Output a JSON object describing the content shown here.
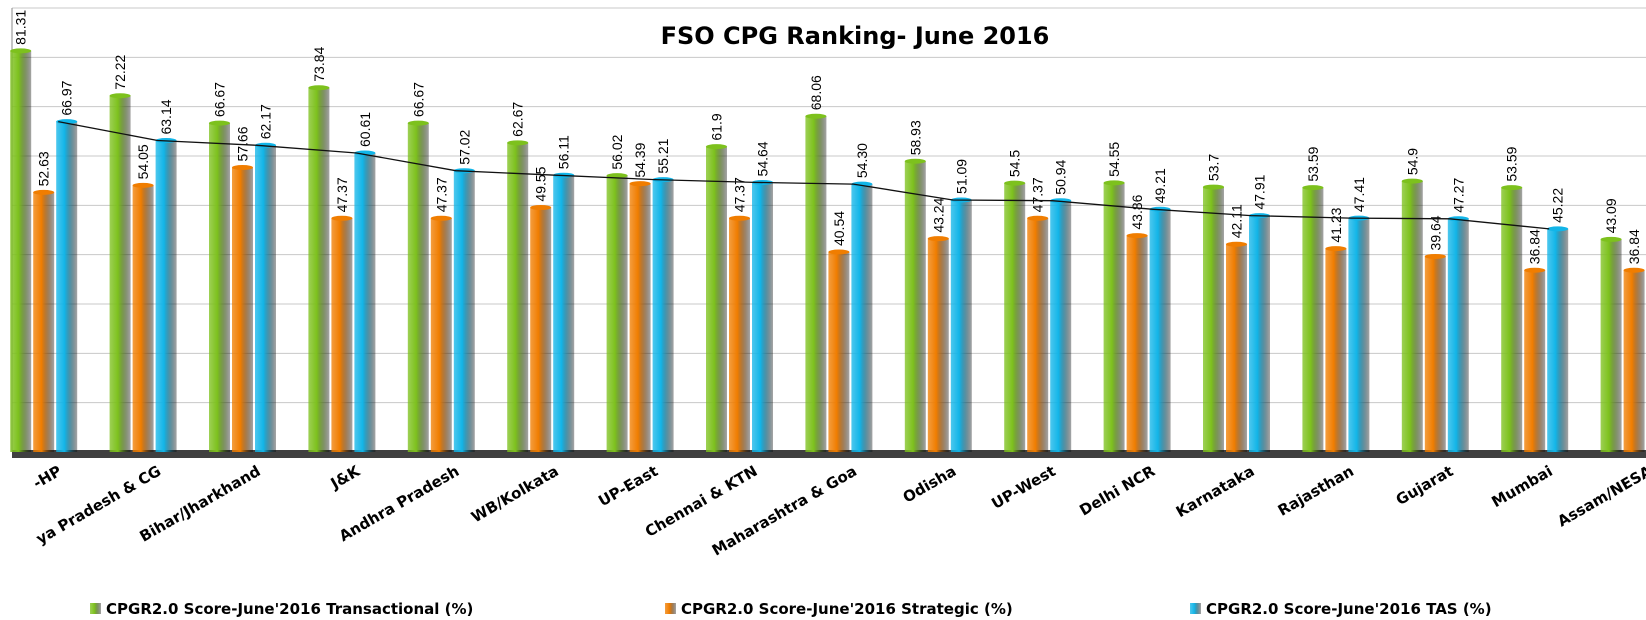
{
  "chart_data": {
    "type": "bar",
    "title": "FSO CPG Ranking- June 2016",
    "categories": [
      "-HP",
      "ya Pradesh & CG",
      "Bihar/Jharkhand",
      "J&K",
      "Andhra Pradesh",
      "WB/Kolkata",
      "UP-East",
      "Chennai & KTN",
      "Maharashtra & Goa",
      "Odisha",
      "UP-West",
      "Delhi NCR",
      "Karnataka",
      "Rajasthan",
      "Gujarat",
      "Mumbai",
      "Assam/NESA"
    ],
    "series": [
      {
        "name": "CPGR2.0 Score-June'2016 Transactional (%)",
        "color": "#7dc11d",
        "values": [
          81.31,
          72.22,
          66.67,
          73.84,
          66.67,
          62.67,
          56.02,
          61.9,
          68.06,
          58.93,
          54.5,
          54.55,
          53.7,
          53.59,
          54.9,
          53.59,
          43.09
        ]
      },
      {
        "name": "CPGR2.0 Score-June'2016 Strategic (%)",
        "color": "#f07d00",
        "values": [
          52.63,
          54.05,
          57.66,
          47.37,
          47.37,
          49.55,
          54.39,
          47.37,
          40.54,
          43.24,
          47.37,
          43.86,
          42.11,
          41.23,
          39.64,
          36.84,
          36.84
        ]
      },
      {
        "name": "CPGR2.0 Score-June'2016 TAS (%)",
        "color": "#12b5e8",
        "values": [
          66.97,
          63.14,
          62.17,
          60.61,
          57.02,
          56.11,
          55.21,
          54.64,
          54.3,
          51.09,
          50.94,
          49.21,
          47.91,
          47.41,
          47.27,
          45.22,
          null
        ],
        "value_labels": [
          "66.97",
          "63.14",
          "62.17",
          "60.61",
          "57.02",
          "56.11",
          "55.21",
          "54.64",
          "54.30",
          "51.09",
          "50.94",
          "49.21",
          "47.91",
          "47.41",
          "47.27",
          "45.22",
          null
        ]
      }
    ],
    "ylim": [
      0,
      90
    ],
    "yticks": [
      0,
      10,
      20,
      30,
      40,
      50,
      60,
      70,
      80,
      90
    ],
    "grid": true,
    "legend": "bottom"
  }
}
